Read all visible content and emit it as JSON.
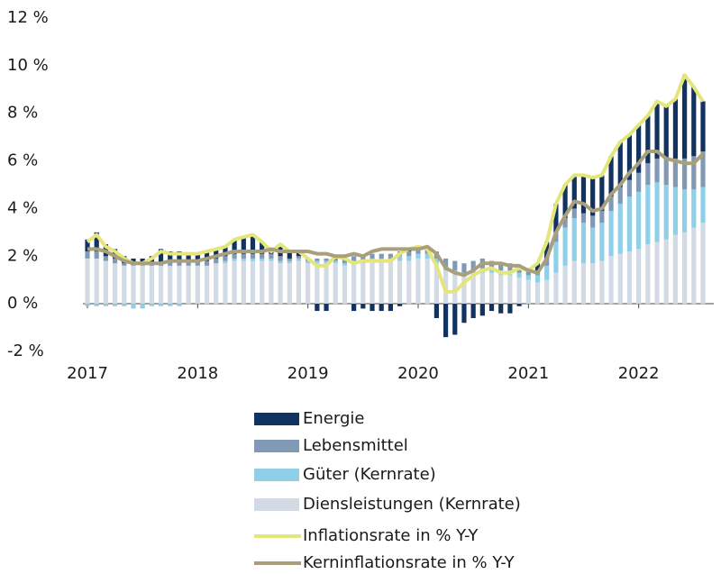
{
  "chart_data": {
    "type": "bar",
    "stacked": true,
    "categories": [
      "2017",
      null,
      null,
      null,
      null,
      null,
      null,
      null,
      null,
      null,
      null,
      null,
      "2018",
      null,
      null,
      null,
      null,
      null,
      null,
      null,
      null,
      null,
      null,
      null,
      "2019",
      null,
      null,
      null,
      null,
      null,
      null,
      null,
      null,
      null,
      null,
      null,
      "2020",
      null,
      null,
      null,
      null,
      null,
      null,
      null,
      null,
      null,
      null,
      null,
      "2021",
      null,
      null,
      null,
      null,
      null,
      null,
      null,
      null,
      null,
      null,
      null,
      "2022",
      null,
      null,
      null,
      null,
      null,
      null,
      null
    ],
    "ylim": [
      -2,
      12
    ],
    "yticks": [
      {
        "value": -2,
        "label": "-2 %"
      },
      {
        "value": 0,
        "label": "0 %"
      },
      {
        "value": 2,
        "label": "2 %"
      },
      {
        "value": 4,
        "label": "4 %"
      },
      {
        "value": 6,
        "label": "6 %"
      },
      {
        "value": 8,
        "label": "8 %"
      },
      {
        "value": 10,
        "label": "10 %"
      },
      {
        "value": 12,
        "label": "12 %"
      }
    ],
    "series": [
      {
        "name": "Energie",
        "type": "bar",
        "color": "#12325f",
        "values": [
          0.5,
          0.8,
          0.5,
          0.4,
          0.3,
          0.2,
          0.2,
          0.3,
          0.6,
          0.4,
          0.4,
          0.3,
          0.3,
          0.4,
          0.4,
          0.4,
          0.6,
          0.7,
          0.8,
          0.5,
          0.1,
          0.5,
          0.3,
          0.2,
          0,
          -0.3,
          -0.3,
          0,
          0,
          -0.3,
          -0.2,
          -0.3,
          -0.3,
          -0.3,
          -0.1,
          0.1,
          0.1,
          0,
          -0.6,
          -1.4,
          -1.3,
          -0.8,
          -0.6,
          -0.5,
          -0.3,
          -0.4,
          -0.4,
          -0.1,
          0,
          0.3,
          0.7,
          1.2,
          1.4,
          1.4,
          1.6,
          1.6,
          1.5,
          1.7,
          1.9,
          1.9,
          2.0,
          2.0,
          2.4,
          2.2,
          2.5,
          3.5,
          2.9,
          2.1
        ]
      },
      {
        "name": "Lebensmittel",
        "type": "bar",
        "color": "#8199b5",
        "values": [
          0.3,
          0.3,
          0.2,
          0.2,
          0.1,
          0.1,
          0.1,
          0.1,
          0.1,
          0.2,
          0.2,
          0.2,
          0.2,
          0.2,
          0.2,
          0.2,
          0.2,
          0.2,
          0.2,
          0.2,
          0.2,
          0.2,
          0.1,
          0.1,
          0.1,
          0.1,
          0.1,
          0.2,
          0.2,
          0.2,
          0.2,
          0.2,
          0.2,
          0.2,
          0.2,
          0.2,
          0.2,
          0.2,
          0.3,
          0.4,
          0.4,
          0.4,
          0.4,
          0.4,
          0.3,
          0.3,
          0.3,
          0.3,
          0.2,
          0.2,
          0.3,
          0.4,
          0.4,
          0.4,
          0.4,
          0.5,
          0.5,
          0.6,
          0.7,
          0.7,
          0.8,
          0.9,
          1.0,
          1.1,
          1.2,
          1.3,
          1.4,
          1.5
        ]
      },
      {
        "name": "Güter (Kernrate)",
        "type": "bar",
        "color": "#8fd0e8",
        "values": [
          -0.1,
          -0.1,
          -0.1,
          -0.1,
          -0.1,
          -0.2,
          -0.2,
          -0.1,
          -0.1,
          -0.1,
          -0.1,
          0,
          0,
          0,
          0,
          0.1,
          0.1,
          0.1,
          0.1,
          0.1,
          0.1,
          0.1,
          0.1,
          0.1,
          0.1,
          0.1,
          0.1,
          0.1,
          0.1,
          0.1,
          0.1,
          0.1,
          0.1,
          0.1,
          0.2,
          0.2,
          0.2,
          0.2,
          0.2,
          0.1,
          0.1,
          0.1,
          0.1,
          0.2,
          0.2,
          0.2,
          0.2,
          0.2,
          0.2,
          0.3,
          0.6,
          1.3,
          1.6,
          1.8,
          1.7,
          1.5,
          1.6,
          1.9,
          2.1,
          2.3,
          2.4,
          2.5,
          2.5,
          2.3,
          2.0,
          1.8,
          1.6,
          1.5
        ]
      },
      {
        "name": "Diensleistungen (Kernrate)",
        "type": "bar",
        "color": "#d2dae4",
        "values": [
          1.9,
          1.9,
          1.8,
          1.7,
          1.6,
          1.6,
          1.6,
          1.6,
          1.6,
          1.6,
          1.6,
          1.6,
          1.6,
          1.6,
          1.7,
          1.7,
          1.8,
          1.8,
          1.8,
          1.8,
          1.8,
          1.7,
          1.7,
          1.8,
          1.7,
          1.7,
          1.7,
          1.7,
          1.6,
          1.7,
          1.7,
          1.8,
          1.8,
          1.8,
          1.8,
          1.8,
          1.9,
          1.9,
          1.7,
          1.4,
          1.3,
          1.2,
          1.3,
          1.3,
          1.3,
          1.2,
          1.2,
          1.1,
          1.0,
          0.9,
          1.0,
          1.3,
          1.6,
          1.8,
          1.7,
          1.7,
          1.8,
          2.0,
          2.1,
          2.2,
          2.3,
          2.5,
          2.6,
          2.7,
          2.9,
          3.0,
          3.2,
          3.4
        ]
      },
      {
        "name": "Inflationsrate in % Y-Y",
        "type": "line",
        "color": "#e4e67c",
        "values": [
          2.6,
          2.9,
          2.4,
          2.2,
          1.9,
          1.7,
          1.7,
          1.9,
          2.2,
          2.1,
          2.1,
          2.1,
          2.1,
          2.2,
          2.3,
          2.4,
          2.7,
          2.8,
          2.9,
          2.6,
          2.2,
          2.5,
          2.2,
          2.2,
          1.9,
          1.6,
          1.6,
          2.0,
          1.9,
          1.7,
          1.8,
          1.8,
          1.8,
          1.8,
          2.1,
          2.3,
          2.4,
          2.3,
          1.6,
          0.5,
          0.5,
          0.9,
          1.2,
          1.4,
          1.5,
          1.3,
          1.3,
          1.5,
          1.4,
          1.7,
          2.6,
          4.2,
          5.0,
          5.4,
          5.4,
          5.3,
          5.4,
          6.2,
          6.8,
          7.1,
          7.5,
          7.9,
          8.5,
          8.3,
          8.6,
          9.6,
          9.1,
          8.5
        ]
      },
      {
        "name": "Kerninflationsrate in % Y-Y",
        "type": "line",
        "color": "#a99f7b",
        "values": [
          2.3,
          2.3,
          2.2,
          2.0,
          1.8,
          1.7,
          1.7,
          1.7,
          1.7,
          1.8,
          1.8,
          1.8,
          1.8,
          1.9,
          2.0,
          2.1,
          2.2,
          2.2,
          2.2,
          2.2,
          2.3,
          2.2,
          2.2,
          2.2,
          2.2,
          2.1,
          2.1,
          2.0,
          2.0,
          2.1,
          2.0,
          2.2,
          2.3,
          2.3,
          2.3,
          2.3,
          2.3,
          2.4,
          2.1,
          1.5,
          1.3,
          1.2,
          1.4,
          1.7,
          1.7,
          1.7,
          1.6,
          1.6,
          1.4,
          1.3,
          1.9,
          3.0,
          3.7,
          4.3,
          4.2,
          3.9,
          4.0,
          4.6,
          5.0,
          5.5,
          5.9,
          6.4,
          6.4,
          6.1,
          6.0,
          5.9,
          5.9,
          6.3
        ]
      }
    ]
  }
}
